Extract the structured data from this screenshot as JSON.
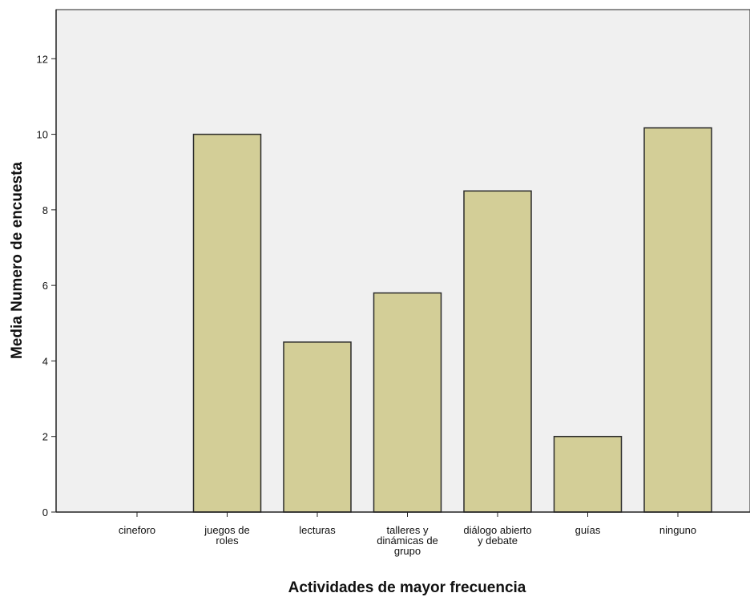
{
  "chart_data": {
    "type": "bar",
    "title": "",
    "xlabel": "Actividades de mayor frecuencia",
    "ylabel": "Media Numero de encuesta",
    "categories": [
      [
        "cineforo"
      ],
      [
        "juegos de",
        "roles"
      ],
      [
        "lecturas"
      ],
      [
        "talleres y",
        "dinámicas de",
        "grupo"
      ],
      [
        "diálogo abierto",
        "y debate"
      ],
      [
        "guías"
      ],
      [
        "ninguno"
      ]
    ],
    "values": [
      0,
      10,
      4.5,
      5.8,
      8.5,
      2,
      10.17
    ],
    "ylim": [
      0,
      13.3
    ],
    "yticks": [
      0,
      2,
      4,
      6,
      8,
      10,
      12
    ],
    "grid": false,
    "legend": "none",
    "colors": {
      "plot_background": "#f0f0f0",
      "bar_fill": "#d3ce97",
      "bar_stroke": "#2b2b2b",
      "axis": "#222222"
    }
  }
}
